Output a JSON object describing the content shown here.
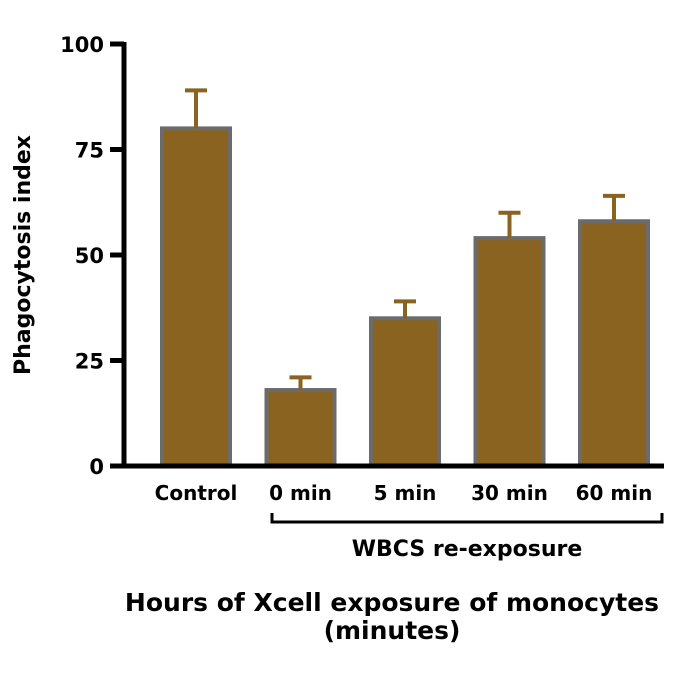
{
  "chart_data": {
    "type": "bar",
    "title": "",
    "xlabel": "",
    "ylabel": "Phagocytosis index",
    "ylim": [
      0,
      100
    ],
    "yticks": [
      0,
      25,
      50,
      75,
      100
    ],
    "categories": [
      "Control",
      "0 min",
      "5 min",
      "30 min",
      "60 min"
    ],
    "values": [
      80,
      18,
      35,
      54,
      58
    ],
    "errors": [
      9,
      3,
      4,
      6,
      6
    ],
    "bracket_label": "WBCS re-exposure",
    "caption_line1": "Hours of Xcell exposure of monocytes",
    "caption_line2": "(minutes)",
    "bar_color": "#8a6320",
    "bar_edge_color": "#6b6b6b",
    "error_color": "#8a6320"
  }
}
